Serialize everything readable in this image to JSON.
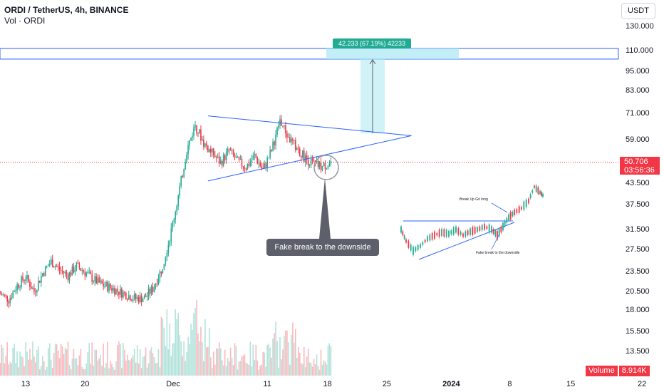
{
  "header": {
    "symbol": "ORDI / TetherUS, 4h, BINANCE",
    "indicator": "Vol · ORDI"
  },
  "currency_button": "USDT",
  "price_badge": {
    "value": "50.706",
    "countdown": "03:56:36"
  },
  "volume_badge": {
    "label": "Volume",
    "value": "8.914K"
  },
  "measure_label": "42.233 (67.19%) 42233",
  "callout": "Fake break to the downside",
  "inset_notes": {
    "breakout": "Break Up Go long",
    "fake": "Fake break to the downside"
  },
  "colors": {
    "up": "#22ab94",
    "down": "#f23645",
    "trendline": "#2962ff",
    "zone": "#b2ebf2",
    "callout": "#5d606b"
  },
  "chart_data": {
    "type": "candlestick",
    "title": "ORDI / TetherUS, 4h, BINANCE",
    "y_scale": "log",
    "y_ticks": [
      130,
      110,
      95,
      83,
      71,
      59,
      50.706,
      43.5,
      37.5,
      31.5,
      27.5,
      23.5,
      20.5,
      18,
      15.5,
      13.5
    ],
    "y_tick_labels": [
      "130.000",
      "110.000",
      "95.000",
      "83.000",
      "71.000",
      "59.000",
      "",
      "43.500",
      "37.500",
      "31.500",
      "27.500",
      "23.500",
      "20.500",
      "18.000",
      "15.500",
      "13.500"
    ],
    "x_ticks": [
      {
        "label": "13",
        "day": 13
      },
      {
        "label": "20",
        "day": 20
      },
      {
        "label": "Dec",
        "day": 30.4
      },
      {
        "label": "11",
        "day": 41.5
      },
      {
        "label": "18",
        "day": 48.6
      },
      {
        "label": "25",
        "day": 55.6
      },
      {
        "label": "2024",
        "day": 63.2
      },
      {
        "label": "8",
        "day": 70.1
      },
      {
        "label": "15",
        "day": 77.3
      },
      {
        "label": "22",
        "day": 85.7
      }
    ],
    "last_price": 50.706,
    "key_levels": {
      "target_zone": [
        104,
        112
      ]
    },
    "price_path": [
      [
        10,
        20.3
      ],
      [
        11,
        19.5
      ],
      [
        12,
        21.5
      ],
      [
        13,
        22.8
      ],
      [
        14,
        20.6
      ],
      [
        15,
        23.4
      ],
      [
        16,
        25.4
      ],
      [
        17,
        24.0
      ],
      [
        18,
        23.0
      ],
      [
        19,
        24.6
      ],
      [
        20,
        23.6
      ],
      [
        21,
        22.4
      ],
      [
        22,
        21.6
      ],
      [
        23,
        21.2
      ],
      [
        24,
        20.6
      ],
      [
        25,
        20.1
      ],
      [
        26,
        19.6
      ],
      [
        27,
        19.7
      ],
      [
        28,
        21.0
      ],
      [
        29,
        24.0
      ],
      [
        30,
        30.0
      ],
      [
        31,
        40.0
      ],
      [
        32,
        55.0
      ],
      [
        33,
        66.0
      ],
      [
        34,
        58.0
      ],
      [
        35,
        54.0
      ],
      [
        36,
        50.5
      ],
      [
        37,
        55.0
      ],
      [
        38,
        51.0
      ],
      [
        39,
        49.0
      ],
      [
        40,
        53.0
      ],
      [
        41,
        48.0
      ],
      [
        42,
        55.0
      ],
      [
        43,
        68.0
      ],
      [
        44,
        60.0
      ],
      [
        45,
        56.0
      ],
      [
        46,
        52.0
      ],
      [
        47,
        50.0
      ],
      [
        48,
        49.0
      ],
      [
        49,
        50.706
      ]
    ],
    "triangle": {
      "upper": [
        [
          34.5,
          70
        ],
        [
          58.5,
          61
        ]
      ],
      "lower": [
        [
          34.5,
          44.5
        ],
        [
          58.5,
          61
        ]
      ]
    }
  }
}
